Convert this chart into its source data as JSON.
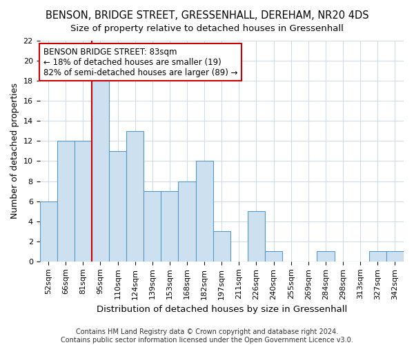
{
  "title": "BENSON, BRIDGE STREET, GRESSENHALL, DEREHAM, NR20 4DS",
  "subtitle": "Size of property relative to detached houses in Gressenhall",
  "xlabel": "Distribution of detached houses by size in Gressenhall",
  "ylabel": "Number of detached properties",
  "bar_labels": [
    "52sqm",
    "66sqm",
    "81sqm",
    "95sqm",
    "110sqm",
    "124sqm",
    "139sqm",
    "153sqm",
    "168sqm",
    "182sqm",
    "197sqm",
    "211sqm",
    "226sqm",
    "240sqm",
    "255sqm",
    "269sqm",
    "284sqm",
    "298sqm",
    "313sqm",
    "327sqm",
    "342sqm"
  ],
  "bar_values": [
    6,
    12,
    12,
    18,
    11,
    13,
    7,
    7,
    8,
    10,
    3,
    0,
    5,
    1,
    0,
    0,
    1,
    0,
    0,
    1,
    1
  ],
  "bar_color": "#cce0f0",
  "bar_edge_color": "#5599cc",
  "ylim": [
    0,
    22
  ],
  "yticks": [
    0,
    2,
    4,
    6,
    8,
    10,
    12,
    14,
    16,
    18,
    20,
    22
  ],
  "vline_x": 2.5,
  "vline_color": "#cc0000",
  "annotation_text_line1": "BENSON BRIDGE STREET: 83sqm",
  "annotation_text_line2": "← 18% of detached houses are smaller (19)",
  "annotation_text_line3": "82% of semi-detached houses are larger (89) →",
  "annotation_box_color": "#ffffff",
  "annotation_box_edge_color": "#cc0000",
  "footer_line1": "Contains HM Land Registry data © Crown copyright and database right 2024.",
  "footer_line2": "Contains public sector information licensed under the Open Government Licence v3.0.",
  "title_fontsize": 10.5,
  "subtitle_fontsize": 9.5,
  "tick_fontsize": 8,
  "ylabel_fontsize": 9,
  "xlabel_fontsize": 9.5,
  "annotation_fontsize": 8.5,
  "footer_fontsize": 7,
  "background_color": "#ffffff",
  "plot_bg_color": "#ffffff",
  "grid_color": "#d0dce8"
}
